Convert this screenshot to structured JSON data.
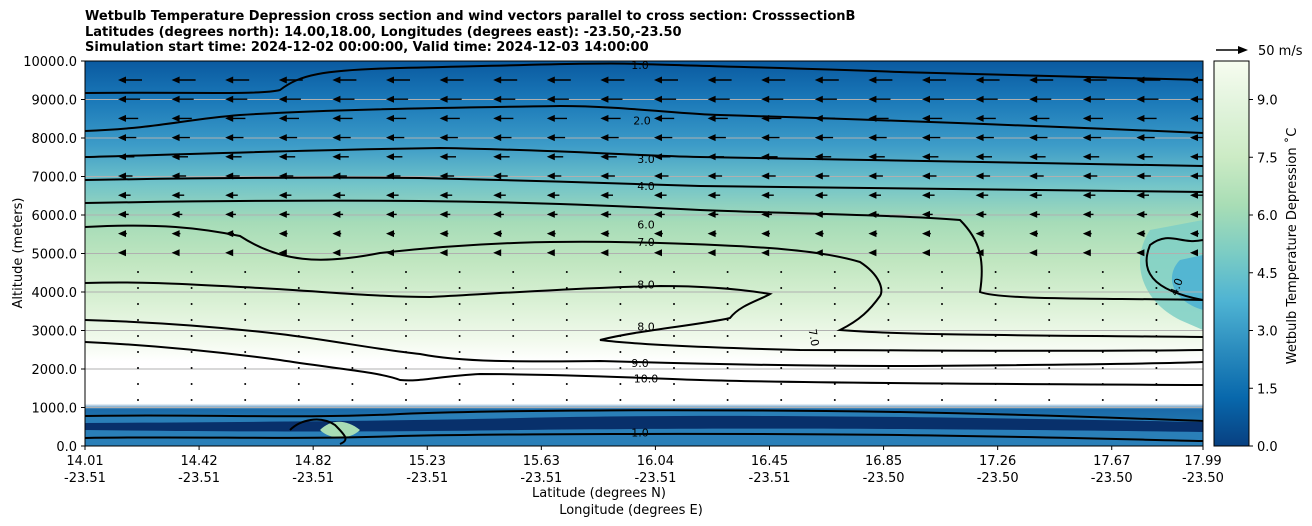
{
  "title_lines": [
    "Wetbulb Temperature Depression cross section and wind vectors parallel to cross section: CrosssectionB",
    "Latitudes (degrees north): 14.00,18.00, Longitudes (degrees east): -23.50,-23.50",
    "Simulation start time: 2024-12-02 00:00:00, Valid time: 2024-12-03 14:00:00"
  ],
  "chart_data": {
    "type": "heatmap",
    "ylabel": "Altitude (meters)",
    "xlabel_lat": "Latitude (degrees N)",
    "xlabel_lon": "Longitude (degrees E)",
    "ylim": [
      0,
      10000
    ],
    "y_ticks": [
      "0.0",
      "1000.0",
      "2000.0",
      "3000.0",
      "4000.0",
      "5000.0",
      "6000.0",
      "7000.0",
      "8000.0",
      "9000.0",
      "10000.0"
    ],
    "x_ticks_lat": [
      "14.01",
      "14.42",
      "14.82",
      "15.23",
      "15.63",
      "16.04",
      "16.45",
      "16.85",
      "17.26",
      "17.67",
      "17.99"
    ],
    "x_ticks_lon": [
      "-23.51",
      "-23.51",
      "-23.51",
      "-23.51",
      "-23.51",
      "-23.51",
      "-23.51",
      "-23.50",
      "-23.50",
      "-23.50",
      "-23.50"
    ],
    "grid": "horizontal",
    "colorbar": {
      "label": "Wetbulb Temperature Depression ˚C",
      "range": [
        0,
        10
      ],
      "ticks": [
        "0.0",
        "1.5",
        "3.0",
        "4.5",
        "6.0",
        "7.5",
        "9.0"
      ],
      "colormap": "GnBu_r"
    },
    "vector_key": {
      "label": "50 m/s"
    },
    "contour_labels": [
      {
        "text": "1.0",
        "alt": 9900
      },
      {
        "text": "2.0",
        "alt": 8450
      },
      {
        "text": "3.0",
        "alt": 7450
      },
      {
        "text": "4.0",
        "alt": 6750
      },
      {
        "text": "6.0",
        "alt": 5750
      },
      {
        "text": "7.0",
        "alt": 5300
      },
      {
        "text": "8.0",
        "alt": 4200
      },
      {
        "text": "8.0",
        "alt": 3100
      },
      {
        "text": "7.0",
        "alt": 2800
      },
      {
        "text": "9.0",
        "alt": 2150
      },
      {
        "text": "10.0",
        "alt": 1750
      },
      {
        "text": "4.0",
        "alt": 4100
      },
      {
        "text": "1.0",
        "alt": 350
      }
    ]
  },
  "colors": {
    "colormap_stops": [
      "#084081",
      "#0868ac",
      "#2b8cbe",
      "#4eb3d3",
      "#7bccc4",
      "#a8ddb5",
      "#ccebc5",
      "#e0f3db",
      "#f7fcf0"
    ]
  }
}
